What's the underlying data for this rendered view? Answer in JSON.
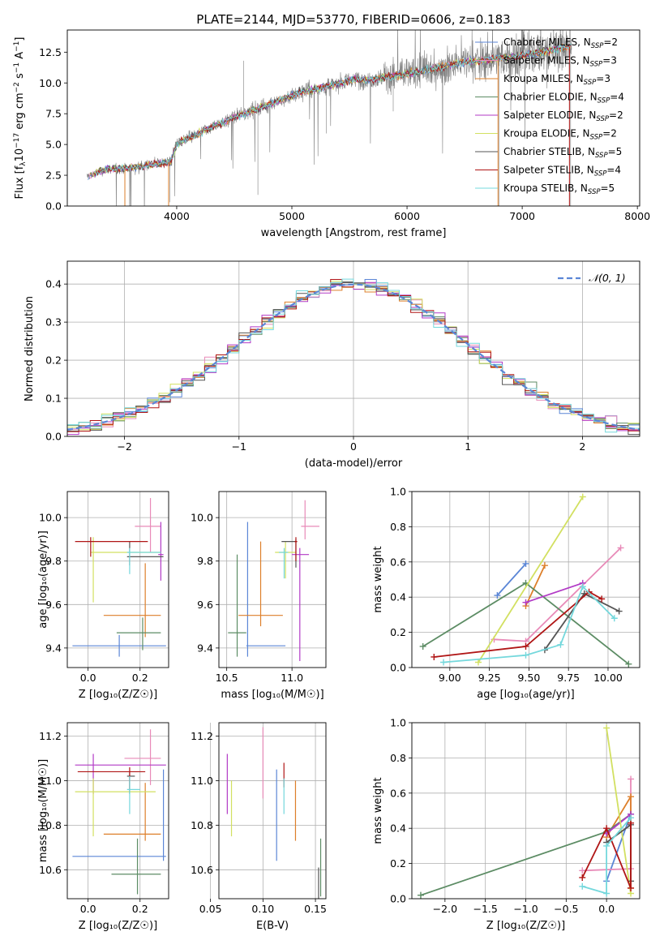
{
  "figure": {
    "title": "PLATE=2144, MJD=53770, FIBERID=0606, z=0.183"
  },
  "models": [
    {
      "label": "Chabrier MILES, N",
      "sub": "SSP",
      "n": "=2",
      "color": "#5b86d6"
    },
    {
      "label": "Salpeter MILES, N",
      "sub": "SSP",
      "n": "=3",
      "color": "#e88ab8"
    },
    {
      "label": "Kroupa MILES, N",
      "sub": "SSP",
      "n": "=3",
      "color": "#dd7f2a"
    },
    {
      "label": "Chabrier ELODIE, N",
      "sub": "SSP",
      "n": "=4",
      "color": "#5c8c64"
    },
    {
      "label": "Salpeter ELODIE, N",
      "sub": "SSP",
      "n": "=2",
      "color": "#b23ac6"
    },
    {
      "label": "Kroupa ELODIE, N",
      "sub": "SSP",
      "n": "=2",
      "color": "#d2e061"
    },
    {
      "label": "Chabrier STELIB, N",
      "sub": "SSP",
      "n": "=5",
      "color": "#555555"
    },
    {
      "label": "Salpeter STELIB, N",
      "sub": "SSP",
      "n": "=4",
      "color": "#b01515"
    },
    {
      "label": "Kroupa STELIB, N",
      "sub": "SSP",
      "n": "=5",
      "color": "#74d8dc"
    }
  ],
  "chart_data": [
    {
      "id": "spectrum",
      "type": "line",
      "xlabel": "wavelength [Angstrom, rest frame]",
      "ylabel_pre": "Flux [f",
      "ylabel_sub": "λ",
      "ylabel_mid": "10",
      "ylabel_exp1": "−17",
      "ylabel_post": " erg cm",
      "ylabel_exp2": "−2",
      "ylabel_post2": " s",
      "ylabel_exp3": "−1",
      "ylabel_post3": " A",
      "ylabel_exp4": "−1",
      "ylabel_end": "]",
      "xlim": [
        3050,
        8020
      ],
      "ylim": [
        0,
        14.3
      ],
      "xticks": [
        "4000",
        "5000",
        "6000",
        "7000",
        "8000"
      ],
      "yticks": [
        "0.0",
        "2.5",
        "5.0",
        "7.5",
        "10.0",
        "12.5"
      ],
      "xtick_values": [
        4000,
        5000,
        6000,
        7000,
        8000
      ],
      "ytick_values": [
        0,
        2.5,
        5.0,
        7.5,
        10.0,
        12.5
      ],
      "grid": false,
      "legend": "top-right",
      "observed_envelope": [
        [
          3220,
          2.4
        ],
        [
          3400,
          3.0
        ],
        [
          3600,
          3.1
        ],
        [
          3800,
          3.4
        ],
        [
          3950,
          3.6
        ],
        [
          4000,
          5.0
        ],
        [
          4100,
          5.5
        ],
        [
          4300,
          6.4
        ],
        [
          4500,
          7.2
        ],
        [
          4700,
          7.9
        ],
        [
          4900,
          8.6
        ],
        [
          5100,
          9.3
        ],
        [
          5300,
          9.7
        ],
        [
          5500,
          10.2
        ],
        [
          5700,
          10.3
        ],
        [
          5900,
          10.6
        ],
        [
          6100,
          10.9
        ],
        [
          6300,
          11.3
        ],
        [
          6500,
          11.7
        ],
        [
          6700,
          11.9
        ],
        [
          6900,
          12.1
        ],
        [
          7100,
          12.4
        ],
        [
          7300,
          12.8
        ],
        [
          7430,
          13.0
        ]
      ]
    },
    {
      "id": "residuals",
      "type": "histogram",
      "xlabel": "(data-model)/error",
      "ylabel": "Normed distribution",
      "xlim": [
        -2.5,
        2.5
      ],
      "ylim": [
        0,
        0.46
      ],
      "xticks": [
        "−2",
        "−1",
        "0",
        "1",
        "2"
      ],
      "xtick_values": [
        -2,
        -1,
        0,
        1,
        2
      ],
      "yticks": [
        "0.0",
        "0.1",
        "0.2",
        "0.3",
        "0.4"
      ],
      "ytick_values": [
        0,
        0.1,
        0.2,
        0.3,
        0.4
      ],
      "grid": true,
      "legend": "top-right",
      "legend_label": "𝒩(0, 1)",
      "legend_color": "#5b86d6"
    },
    {
      "id": "age-Z",
      "type": "scatter",
      "xlabel": "Z [log₁₀(Z/Z☉)]",
      "ylabel": "age  [log₁₀(age/yr)]",
      "xlim": [
        -0.08,
        0.31
      ],
      "ylim": [
        9.31,
        10.12
      ],
      "xticks": [
        "0.0",
        "0.2"
      ],
      "xtick_values": [
        0,
        0.2
      ],
      "yticks": [
        "9.4",
        "9.6",
        "9.8",
        "10.0"
      ],
      "ytick_values": [
        9.4,
        9.6,
        9.8,
        10.0
      ],
      "grid": true,
      "points": [
        {
          "model": 0,
          "x": 0.12,
          "y": 9.41,
          "xerr": [
            0.18,
            0.18
          ],
          "yerr": [
            0.05,
            0.05
          ]
        },
        {
          "model": 1,
          "x": 0.24,
          "y": 9.96,
          "xerr": [
            0.06,
            0.04
          ],
          "yerr": [
            0.12,
            0.13
          ]
        },
        {
          "model": 2,
          "x": 0.22,
          "y": 9.55,
          "xerr": [
            0.16,
            0.06
          ],
          "yerr": [
            0.1,
            0.24
          ]
        },
        {
          "model": 3,
          "x": 0.21,
          "y": 9.47,
          "xerr": [
            0.1,
            0.07
          ],
          "yerr": [
            0.08,
            0.07
          ]
        },
        {
          "model": 4,
          "x": 0.28,
          "y": 9.83,
          "xerr": [
            0.01,
            0.01
          ],
          "yerr": [
            0.12,
            0.15
          ]
        },
        {
          "model": 5,
          "x": 0.02,
          "y": 9.84,
          "xerr": [
            0.01,
            0.26
          ],
          "yerr": [
            0.23,
            0.07
          ]
        },
        {
          "model": 6,
          "x": 0.16,
          "y": 9.82,
          "xerr": [
            0.01,
            0.13
          ],
          "yerr": [
            0.04,
            0.07
          ]
        },
        {
          "model": 7,
          "x": 0.01,
          "y": 9.89,
          "xerr": [
            0.06,
            0.22
          ],
          "yerr": [
            0.07,
            0.02
          ]
        },
        {
          "model": 8,
          "x": 0.16,
          "y": 9.84,
          "xerr": [
            0.01,
            0.12
          ],
          "yerr": [
            0.1,
            0.02
          ]
        }
      ]
    },
    {
      "id": "age-mass",
      "type": "scatter",
      "xlabel": "mass [log₁₀(M/M☉)]",
      "ylabel": "",
      "xlim": [
        10.44,
        11.26
      ],
      "ylim": [
        9.31,
        10.12
      ],
      "xticks": [
        "10.5",
        "11.0"
      ],
      "xtick_values": [
        10.5,
        11.0
      ],
      "yticks": [
        "9.4",
        "9.6",
        "9.8",
        "10.0"
      ],
      "ytick_values": [
        9.4,
        9.6,
        9.8,
        10.0
      ],
      "grid": true,
      "points": [
        {
          "model": 0,
          "x": 10.66,
          "y": 9.41,
          "xerr": [
            0.01,
            0.29
          ],
          "yerr": [
            0.05,
            0.57
          ]
        },
        {
          "model": 1,
          "x": 11.1,
          "y": 9.96,
          "xerr": [
            0.03,
            0.11
          ],
          "yerr": [
            0.06,
            0.12
          ]
        },
        {
          "model": 2,
          "x": 10.76,
          "y": 9.55,
          "xerr": [
            0.17,
            0.17
          ],
          "yerr": [
            0.05,
            0.34
          ]
        },
        {
          "model": 3,
          "x": 10.58,
          "y": 9.47,
          "xerr": [
            0.07,
            0.07
          ],
          "yerr": [
            0.11,
            0.36
          ]
        },
        {
          "model": 4,
          "x": 11.06,
          "y": 9.83,
          "xerr": [
            0.06,
            0.07
          ],
          "yerr": [
            0.49,
            0.03
          ]
        },
        {
          "model": 5,
          "x": 10.95,
          "y": 9.84,
          "xerr": [
            0.08,
            0.08
          ],
          "yerr": [
            0.12,
            0.05
          ]
        },
        {
          "model": 6,
          "x": 11.03,
          "y": 9.89,
          "xerr": [
            0.11,
            0.01
          ],
          "yerr": [
            0.12,
            0.01
          ]
        },
        {
          "model": 7,
          "x": 11.03,
          "y": 9.89,
          "xerr": [
            0.01,
            0.01
          ],
          "yerr": [
            0.09,
            0.02
          ]
        },
        {
          "model": 8,
          "x": 10.94,
          "y": 9.84,
          "xerr": [
            0.04,
            0.03
          ],
          "yerr": [
            0.12,
            0.02
          ]
        }
      ]
    },
    {
      "id": "weight-age",
      "type": "line",
      "xlabel": "age  [log₁₀(age/yr)]",
      "ylabel": "mass weight",
      "xlim": [
        8.76,
        10.2
      ],
      "ylim": [
        0,
        1.0
      ],
      "xticks": [
        "9.00",
        "9.25",
        "9.50",
        "9.75",
        "10.00"
      ],
      "xtick_values": [
        9.0,
        9.25,
        9.5,
        9.75,
        10.0
      ],
      "yticks": [
        "0.0",
        "0.2",
        "0.4",
        "0.6",
        "0.8",
        "1.0"
      ],
      "ytick_values": [
        0,
        0.2,
        0.4,
        0.6,
        0.8,
        1.0
      ],
      "grid": true,
      "series": [
        {
          "model": 0,
          "x": [
            9.3,
            9.48
          ],
          "y": [
            0.41,
            0.59
          ]
        },
        {
          "model": 1,
          "x": [
            9.28,
            9.48,
            10.08
          ],
          "y": [
            0.16,
            0.15,
            0.68
          ]
        },
        {
          "model": 2,
          "x": [
            9.48,
            9.6
          ],
          "y": [
            0.35,
            0.58
          ]
        },
        {
          "model": 3,
          "x": [
            8.83,
            9.48,
            10.13
          ],
          "y": [
            0.12,
            0.48,
            0.02
          ]
        },
        {
          "model": 4,
          "x": [
            9.48,
            9.84
          ],
          "y": [
            0.37,
            0.48
          ]
        },
        {
          "model": 5,
          "x": [
            9.18,
            9.84
          ],
          "y": [
            0.03,
            0.97
          ]
        },
        {
          "model": 6,
          "x": [
            9.6,
            9.85,
            10.07
          ],
          "y": [
            0.1,
            0.42,
            0.32
          ]
        },
        {
          "model": 7,
          "x": [
            8.9,
            9.48,
            9.88,
            9.96
          ],
          "y": [
            0.06,
            0.12,
            0.43,
            0.39
          ]
        },
        {
          "model": 8,
          "x": [
            8.96,
            9.48,
            9.7,
            9.84,
            10.04
          ],
          "y": [
            0.03,
            0.07,
            0.13,
            0.46,
            0.28
          ]
        }
      ]
    },
    {
      "id": "mass-Z",
      "type": "scatter",
      "xlabel": "Z [log₁₀(Z/Z☉)]",
      "ylabel": "mass [log₁₀(M/M☉)]",
      "xlim": [
        -0.08,
        0.31
      ],
      "ylim": [
        10.47,
        11.26
      ],
      "xticks": [
        "0.0",
        "0.2"
      ],
      "xtick_values": [
        0,
        0.2
      ],
      "yticks": [
        "10.6",
        "10.8",
        "11.0",
        "11.2"
      ],
      "ytick_values": [
        10.6,
        10.8,
        11.0,
        11.2
      ],
      "grid": true,
      "points": [
        {
          "model": 0,
          "x": 0.29,
          "y": 10.66,
          "xerr": [
            0.35,
            0.01
          ],
          "yerr": [
            0.02,
            0.39
          ]
        },
        {
          "model": 1,
          "x": 0.24,
          "y": 11.1,
          "xerr": [
            0.1,
            0.04
          ],
          "yerr": [
            0.12,
            0.13
          ]
        },
        {
          "model": 2,
          "x": 0.22,
          "y": 10.76,
          "xerr": [
            0.16,
            0.06
          ],
          "yerr": [
            0.03,
            0.23
          ]
        },
        {
          "model": 3,
          "x": 0.19,
          "y": 10.58,
          "xerr": [
            0.1,
            0.09
          ],
          "yerr": [
            0.09,
            0.16
          ]
        },
        {
          "model": 4,
          "x": 0.02,
          "y": 11.07,
          "xerr": [
            0.07,
            0.28
          ],
          "yerr": [
            0.13,
            0.05
          ]
        },
        {
          "model": 5,
          "x": 0.02,
          "y": 10.95,
          "xerr": [
            0.07,
            0.24
          ],
          "yerr": [
            0.2,
            0.06
          ]
        },
        {
          "model": 6,
          "x": 0.16,
          "y": 11.02,
          "xerr": [
            0.01,
            0.02
          ],
          "yerr": [
            0.08,
            0.02
          ]
        },
        {
          "model": 7,
          "x": 0.16,
          "y": 11.04,
          "xerr": [
            0.2,
            0.06
          ],
          "yerr": [
            0.08,
            0.02
          ]
        },
        {
          "model": 8,
          "x": 0.16,
          "y": 10.96,
          "xerr": [
            0.01,
            0.04
          ],
          "yerr": [
            0.11,
            0.06
          ]
        }
      ]
    },
    {
      "id": "mass-ebv",
      "type": "scatter",
      "xlabel": "E(B-V)",
      "ylabel": "",
      "xlim": [
        0.058,
        0.16
      ],
      "ylim": [
        10.47,
        11.26
      ],
      "xticks": [
        "0.05",
        "0.10",
        "0.15"
      ],
      "xtick_values": [
        0.05,
        0.1,
        0.15
      ],
      "yticks": [
        "10.6",
        "10.8",
        "11.0",
        "11.2"
      ],
      "ytick_values": [
        10.6,
        10.8,
        11.0,
        11.2
      ],
      "grid": true,
      "points": [
        {
          "model": 0,
          "x": 0.113,
          "y": 10.85,
          "yerr": [
            0.21,
            0.2
          ]
        },
        {
          "model": 1,
          "x": 0.1,
          "y": 11.11,
          "yerr": [
            0.19,
            0.13
          ]
        },
        {
          "model": 2,
          "x": 0.131,
          "y": 10.86,
          "yerr": [
            0.13,
            0.14
          ]
        },
        {
          "model": 3,
          "x": 0.155,
          "y": 10.58,
          "yerr": [
            0.1,
            0.16
          ]
        },
        {
          "model": 4,
          "x": 0.066,
          "y": 10.98,
          "yerr": [
            0.13,
            0.14
          ]
        },
        {
          "model": 5,
          "x": 0.07,
          "y": 10.87,
          "yerr": [
            0.12,
            0.13
          ]
        },
        {
          "model": 6,
          "x": 0.153,
          "y": 10.54,
          "yerr": [
            0.07,
            0.07
          ]
        },
        {
          "model": 7,
          "x": 0.12,
          "y": 11.03,
          "yerr": [
            0.06,
            0.05
          ]
        },
        {
          "model": 8,
          "x": 0.12,
          "y": 10.96,
          "yerr": [
            0.11,
            0.05
          ]
        }
      ]
    },
    {
      "id": "weight-Z",
      "type": "line",
      "xlabel": "Z [log₁₀(Z/Z☉)]",
      "ylabel": "mass weight",
      "xlim": [
        -2.41,
        0.41
      ],
      "ylim": [
        0,
        1.0
      ],
      "xticks": [
        "−2.0",
        "−1.5",
        "−1.0",
        "−0.5",
        "0.0"
      ],
      "xtick_values": [
        -2.0,
        -1.5,
        -1.0,
        -0.5,
        0.0
      ],
      "yticks": [
        "0.0",
        "0.2",
        "0.4",
        "0.6",
        "0.8",
        "1.0"
      ],
      "ytick_values": [
        0,
        0.2,
        0.4,
        0.6,
        0.8,
        1.0
      ],
      "grid": true,
      "series": [
        {
          "model": 0,
          "x": [
            0.0,
            0.3
          ],
          "y": [
            0.1,
            0.48
          ]
        },
        {
          "model": 1,
          "x": [
            -0.3,
            0.3,
            0.3
          ],
          "y": [
            0.16,
            0.17,
            0.68
          ]
        },
        {
          "model": 2,
          "x": [
            0.0,
            0.3,
            0.3
          ],
          "y": [
            0.35,
            0.58,
            0.06
          ]
        },
        {
          "model": 3,
          "x": [
            -2.3,
            0.0,
            0.3
          ],
          "y": [
            0.02,
            0.38,
            0.48
          ]
        },
        {
          "model": 4,
          "x": [
            0.0,
            0.3
          ],
          "y": [
            0.37,
            0.48
          ]
        },
        {
          "model": 5,
          "x": [
            0.0,
            0.3
          ],
          "y": [
            0.97,
            0.03
          ]
        },
        {
          "model": 6,
          "x": [
            0.0,
            0.3,
            0.3
          ],
          "y": [
            0.32,
            0.42,
            0.1
          ]
        },
        {
          "model": 7,
          "x": [
            -0.3,
            0.0,
            0.3,
            0.3
          ],
          "y": [
            0.12,
            0.4,
            0.06,
            0.43
          ]
        },
        {
          "model": 8,
          "x": [
            -0.3,
            0.0,
            0.0,
            0.3
          ],
          "y": [
            0.07,
            0.03,
            0.3,
            0.46
          ]
        }
      ]
    }
  ]
}
